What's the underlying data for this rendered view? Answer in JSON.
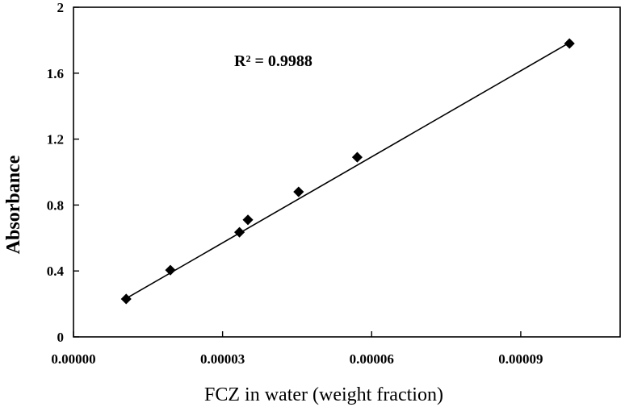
{
  "chart_data": {
    "type": "scatter",
    "title": "",
    "xlabel": "FCZ in water (weight fraction)",
    "ylabel": "Absorbance",
    "xlim": [
      0,
      0.00011
    ],
    "ylim": [
      0,
      2
    ],
    "x_ticks": [
      0,
      3e-05,
      6e-05,
      9e-05
    ],
    "x_tick_labels": [
      "0.00000",
      "0.00003",
      "0.00006",
      "0.00009"
    ],
    "y_ticks": [
      0,
      0.4,
      0.8,
      1.2,
      1.6,
      2
    ],
    "y_tick_labels": [
      "0",
      "0.4",
      "0.8",
      "1.2",
      "1.6",
      "2"
    ],
    "grid": false,
    "legend": "none",
    "marker": "diamond",
    "color": "#000000",
    "points": [
      {
        "x": 1.06e-05,
        "y": 0.23
      },
      {
        "x": 1.95e-05,
        "y": 0.405
      },
      {
        "x": 3.34e-05,
        "y": 0.635
      },
      {
        "x": 3.51e-05,
        "y": 0.71
      },
      {
        "x": 4.53e-05,
        "y": 0.88
      },
      {
        "x": 5.71e-05,
        "y": 1.09
      },
      {
        "x": 9.98e-05,
        "y": 1.78
      }
    ],
    "trendline": {
      "type": "linear",
      "x": [
        1.06e-05,
        9.98e-05
      ],
      "y": [
        0.233,
        1.785
      ]
    },
    "annotation": "R² = 0.9988"
  }
}
